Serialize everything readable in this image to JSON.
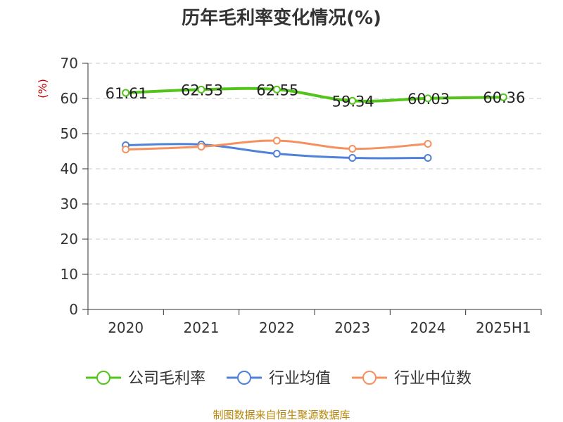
{
  "page": {
    "title": "历年毛利率变化情况(%)",
    "source": "制图数据来自恒生聚源数据库"
  },
  "chart_data": {
    "type": "line",
    "title": "历年毛利率变化情况(%)",
    "ylabel": "(%)",
    "xlabel": "",
    "categories": [
      "2020",
      "2021",
      "2022",
      "2023",
      "2024",
      "2025H1"
    ],
    "ylim": [
      0,
      70
    ],
    "yticks": [
      "0",
      "10",
      "20",
      "30",
      "40",
      "50",
      "60",
      "70"
    ],
    "grid": true,
    "legend_position": "bottom",
    "series": [
      {
        "name": "公司毛利率",
        "color": "#52c41a",
        "values": [
          61.61,
          62.53,
          62.55,
          59.34,
          60.03,
          60.36
        ],
        "labels": [
          "61.61",
          "62.53",
          "62.55",
          "59.34",
          "60.03",
          "60.36"
        ]
      },
      {
        "name": "行业均值",
        "color": "#4f81d9",
        "values": [
          46.7,
          46.9,
          44.3,
          43.1,
          43.1,
          null
        ],
        "labels": []
      },
      {
        "name": "行业中位数",
        "color": "#f4915e",
        "values": [
          45.5,
          46.3,
          48.0,
          45.7,
          47.1,
          null
        ],
        "labels": []
      }
    ]
  }
}
